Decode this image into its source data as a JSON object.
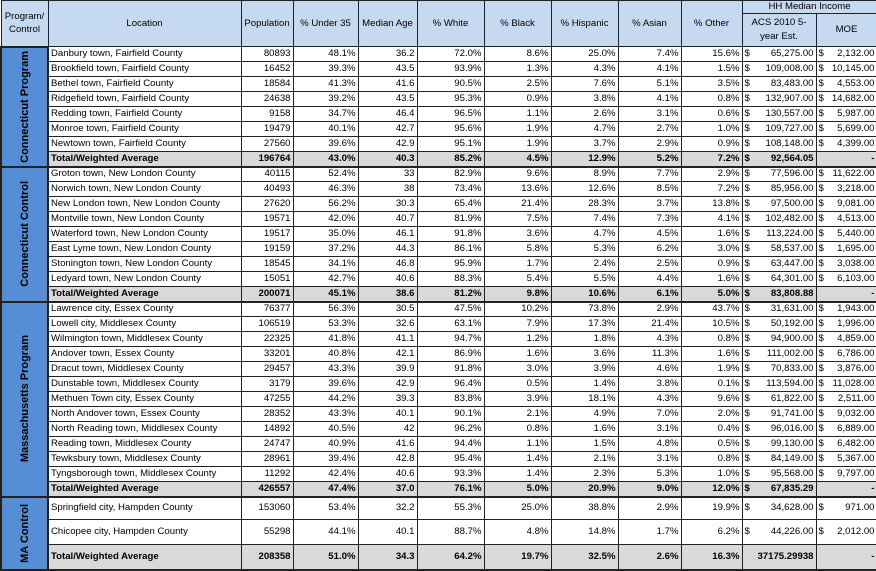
{
  "header": {
    "program_control": "Program/ Control",
    "location": "Location",
    "population": "Population",
    "under35": "% Under 35",
    "median_age": "Median Age",
    "white": "% White",
    "black": "% Black",
    "hispanic": "% Hispanic",
    "asian": "% Asian",
    "other": "% Other",
    "income_group": "HH Median Income",
    "acs": "ACS 2010 5-year Est.",
    "moe": "MOE"
  },
  "colors": {
    "header_bg": "#c5d9f1",
    "group_bg": "#558ed5",
    "total_bg": "#d9d9d9"
  },
  "groups": [
    {
      "label": "Connecticut Program",
      "rows": [
        [
          "Danbury town, Fairfield County",
          "80893",
          "48.1%",
          "36.2",
          "72.0%",
          "8.6%",
          "25.0%",
          "7.4%",
          "15.6%",
          "$",
          "65,275.00",
          "$",
          "2,132.00"
        ],
        [
          "Brookfield town, Fairfield County",
          "16452",
          "39.3%",
          "43.5",
          "93.9%",
          "1.3%",
          "4.3%",
          "4.1%",
          "1.5%",
          "$",
          "109,008.00",
          "$",
          "10,145.00"
        ],
        [
          "Bethel town, Fairfield County",
          "18584",
          "41.3%",
          "41.6",
          "90.5%",
          "2.5%",
          "7.6%",
          "5.1%",
          "3.5%",
          "$",
          "83,483.00",
          "$",
          "4,553.00"
        ],
        [
          "Ridgefield town, Fairfield County",
          "24638",
          "39.2%",
          "43.5",
          "95.3%",
          "0.9%",
          "3.8%",
          "4.1%",
          "0.8%",
          "$",
          "132,907.00",
          "$",
          "14,682.00"
        ],
        [
          "Redding town, Fairfield County",
          "9158",
          "34.7%",
          "46.4",
          "96.5%",
          "1.1%",
          "2.6%",
          "3.1%",
          "0.6%",
          "$",
          "130,557.00",
          "$",
          "5,987.00"
        ],
        [
          "Monroe town, Fairfield County",
          "19479",
          "40.1%",
          "42.7",
          "95.6%",
          "1.9%",
          "4.7%",
          "2.7%",
          "1.0%",
          "$",
          "109,727.00",
          "$",
          "5,699.00"
        ],
        [
          "Newtown town, Fairfield County",
          "27560",
          "39.6%",
          "42.9",
          "95.1%",
          "1.9%",
          "3.7%",
          "2.9%",
          "0.9%",
          "$",
          "108,148.00",
          "$",
          "4,399.00"
        ]
      ],
      "total": [
        "Total/Weighted Average",
        "196764",
        "43.0%",
        "40.3",
        "85.2%",
        "4.5%",
        "12.9%",
        "5.2%",
        "7.2%",
        "$",
        "92,564.05",
        "",
        "-"
      ]
    },
    {
      "label": "Connecticut Control",
      "rows": [
        [
          "Groton town, New London County",
          "40115",
          "52.4%",
          "33",
          "82.9%",
          "9.6%",
          "8.9%",
          "7.7%",
          "2.9%",
          "$",
          "77,596.00",
          "$",
          "11,622.00"
        ],
        [
          "Norwich town, New London County",
          "40493",
          "46.3%",
          "38",
          "73.4%",
          "13.6%",
          "12.6%",
          "8.5%",
          "7.2%",
          "$",
          "85,956.00",
          "$",
          "3,218.00"
        ],
        [
          "New London town, New London County",
          "27620",
          "56.2%",
          "30.3",
          "65.4%",
          "21.4%",
          "28.3%",
          "3.7%",
          "13.8%",
          "$",
          "97,500.00",
          "$",
          "9,081.00"
        ],
        [
          "Montville town, New London County",
          "19571",
          "42.0%",
          "40.7",
          "81.9%",
          "7.5%",
          "7.4%",
          "7.3%",
          "4.1%",
          "$",
          "102,482.00",
          "$",
          "4,513.00"
        ],
        [
          "Waterford town, New London County",
          "19517",
          "35.0%",
          "46.1",
          "91.8%",
          "3.6%",
          "4.7%",
          "4.5%",
          "1.6%",
          "$",
          "113,224.00",
          "$",
          "5,440.00"
        ],
        [
          "East Lyme town, New London County",
          "19159",
          "37.2%",
          "44.3",
          "86.1%",
          "5.8%",
          "5.3%",
          "6.2%",
          "3.0%",
          "$",
          "58,537.00",
          "$",
          "1,695.00"
        ],
        [
          "Stonington town, New London County",
          "18545",
          "34.1%",
          "46.8",
          "95.9%",
          "1.7%",
          "2.4%",
          "2.5%",
          "0.9%",
          "$",
          "63,447.00",
          "$",
          "3,038.00"
        ],
        [
          "Ledyard town, New London County",
          "15051",
          "42.7%",
          "40.6",
          "88.3%",
          "5.4%",
          "5.5%",
          "4.4%",
          "1.6%",
          "$",
          "64,301.00",
          "$",
          "6,103.00"
        ]
      ],
      "total": [
        "Total/Weighted Average",
        "200071",
        "45.1%",
        "38.6",
        "81.2%",
        "9.8%",
        "10.6%",
        "6.1%",
        "5.0%",
        "$",
        "83,808.88",
        "",
        "-"
      ]
    },
    {
      "label": "Massachusetts Program",
      "rows": [
        [
          "Lawrence city, Essex County",
          "76377",
          "56.3%",
          "30.5",
          "47.5%",
          "10.2%",
          "73.8%",
          "2.9%",
          "43.7%",
          "$",
          "31,631.00",
          "$",
          "1,943.00"
        ],
        [
          "Lowell city, Middlesex County",
          "106519",
          "53.3%",
          "32.6",
          "63.1%",
          "7.9%",
          "17.3%",
          "21.4%",
          "10.5%",
          "$",
          "50,192.00",
          "$",
          "1,996.00"
        ],
        [
          "Wilmington town, Middlesex County",
          "22325",
          "41.8%",
          "41.1",
          "94.7%",
          "1.2%",
          "1.8%",
          "4.3%",
          "0.8%",
          "$",
          "94,900.00",
          "$",
          "4,859.00"
        ],
        [
          "Andover town, Essex County",
          "33201",
          "40.8%",
          "42.1",
          "86.9%",
          "1.6%",
          "3.6%",
          "11.3%",
          "1.6%",
          "$",
          "111,002.00",
          "$",
          "6,786.00"
        ],
        [
          "Dracut town, Middlesex County",
          "29457",
          "43.3%",
          "39.9",
          "91.8%",
          "3.0%",
          "3.9%",
          "4.6%",
          "1.9%",
          "$",
          "70,833.00",
          "$",
          "3,876.00"
        ],
        [
          "Dunstable town, Middlesex County",
          "3179",
          "39.6%",
          "42.9",
          "96.4%",
          "0.5%",
          "1.4%",
          "3.8%",
          "0.1%",
          "$",
          "113,594.00",
          "$",
          "11,028.00"
        ],
        [
          "Methuen Town city, Essex County",
          "47255",
          "44.2%",
          "39.3",
          "83.8%",
          "3.9%",
          "18.1%",
          "4.3%",
          "9.6%",
          "$",
          "61,822.00",
          "$",
          "2,511.00"
        ],
        [
          "North Andover town, Essex County",
          "28352",
          "43.3%",
          "40.1",
          "90.1%",
          "2.1%",
          "4.9%",
          "7.0%",
          "2.0%",
          "$",
          "91,741.00",
          "$",
          "9,032.00"
        ],
        [
          "North Reading town, Middlesex County",
          "14892",
          "40.5%",
          "42",
          "96.2%",
          "0.8%",
          "1.6%",
          "3.1%",
          "0.4%",
          "$",
          "96,016.00",
          "$",
          "6,889.00"
        ],
        [
          "Reading town, Middlesex County",
          "24747",
          "40.9%",
          "41.6",
          "94.4%",
          "1.1%",
          "1.5%",
          "4.8%",
          "0.5%",
          "$",
          "99,130.00",
          "$",
          "6,482.00"
        ],
        [
          "Tewksbury town, Middlesex County",
          "28961",
          "39.4%",
          "42.8",
          "95.4%",
          "1.4%",
          "2.1%",
          "3.1%",
          "0.8%",
          "$",
          "84,149.00",
          "$",
          "5,367.00"
        ],
        [
          "Tyngsborough town, Middlesex County",
          "11292",
          "42.4%",
          "40.6",
          "93.3%",
          "1.4%",
          "2.3%",
          "5.3%",
          "1.0%",
          "$",
          "95,568.00",
          "$",
          "9,797.00"
        ]
      ],
      "total": [
        "Total/Weighted Average",
        "426557",
        "47.4%",
        "37.0",
        "76.1%",
        "5.0%",
        "20.9%",
        "9.0%",
        "12.0%",
        "$",
        "67,835.29",
        "",
        "-"
      ]
    },
    {
      "label": "MA Control",
      "rows": [
        [
          "Springfield city, Hampden County",
          "153060",
          "53.4%",
          "32.2",
          "55.3%",
          "25.0%",
          "38.8%",
          "2.9%",
          "19.9%",
          "$",
          "34,628.00",
          "$",
          "971.00"
        ],
        [
          "Chicopee city, Hampden County",
          "55298",
          "44.1%",
          "40.1",
          "88.7%",
          "4.8%",
          "14.8%",
          "1.7%",
          "6.2%",
          "$",
          "44,226.00",
          "$",
          "2,012.00"
        ]
      ],
      "total": [
        "Total/Weighted Average",
        "208358",
        "51.0%",
        "34.3",
        "64.2%",
        "19.7%",
        "32.5%",
        "2.6%",
        "16.3%",
        "",
        "37175.29938",
        "",
        "-"
      ]
    }
  ]
}
